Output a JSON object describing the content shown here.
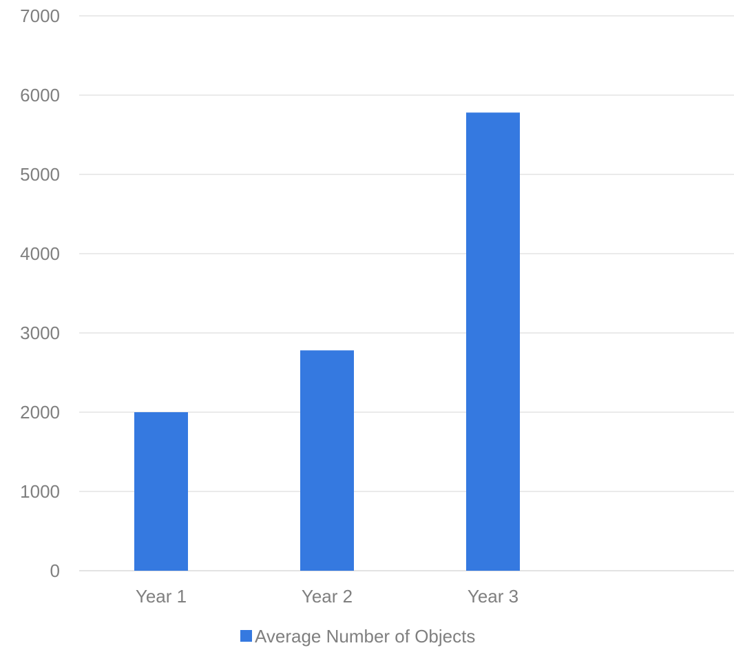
{
  "chart_data": {
    "type": "bar",
    "categories": [
      "Year 1",
      "Year 2",
      "Year 3"
    ],
    "series": [
      {
        "name": "Average Number of Objects",
        "values": [
          2000,
          2780,
          5780
        ]
      }
    ],
    "ylim": [
      0,
      7000
    ],
    "yticks": [
      "0",
      "1000",
      "2000",
      "3000",
      "4000",
      "5000",
      "6000",
      "7000"
    ],
    "grid": true,
    "legend_position": "bottom",
    "colors": {
      "bar": "#3579e0",
      "grid": "#e3e3e3",
      "text": "#7f7f7f"
    }
  }
}
